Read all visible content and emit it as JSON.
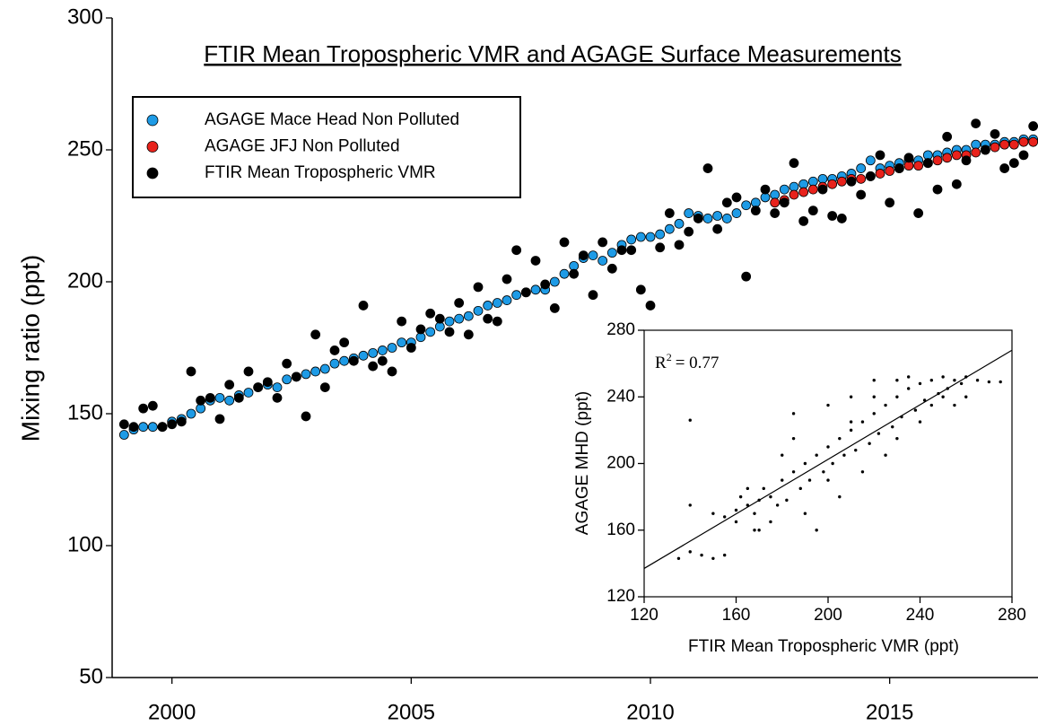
{
  "chart_data": [
    {
      "type": "scatter",
      "title": "FTIR Mean Tropospheric VMR and AGAGE Surface Measurements",
      "ylabel": "Mixing ratio (ppt)",
      "legend": "upper left",
      "xlim": [
        1998.75,
        2018.1
      ],
      "xticks": [
        2000,
        2005,
        2010,
        2015
      ],
      "ylim": [
        50,
        300
      ],
      "yticks": [
        50,
        100,
        150,
        200,
        250,
        300
      ],
      "series": [
        {
          "name": "AGAGE Mace Head Non Polluted",
          "color": "#1e9be6",
          "x": [
            1999.0,
            1999.2,
            1999.4,
            1999.6,
            1999.8,
            2000.0,
            2000.2,
            2000.4,
            2000.6,
            2000.8,
            2001.0,
            2001.2,
            2001.4,
            2001.6,
            2001.8,
            2002.0,
            2002.2,
            2002.4,
            2002.6,
            2002.8,
            2003.0,
            2003.2,
            2003.4,
            2003.6,
            2003.8,
            2004.0,
            2004.2,
            2004.4,
            2004.6,
            2004.8,
            2005.0,
            2005.2,
            2005.4,
            2005.6,
            2005.8,
            2006.0,
            2006.2,
            2006.4,
            2006.6,
            2006.8,
            2007.0,
            2007.2,
            2007.4,
            2007.6,
            2007.8,
            2008.0,
            2008.2,
            2008.4,
            2008.6,
            2008.8,
            2009.0,
            2009.2,
            2009.4,
            2009.6,
            2009.8,
            2010.0,
            2010.2,
            2010.4,
            2010.6,
            2010.8,
            2011.0,
            2011.2,
            2011.4,
            2011.6,
            2011.8,
            2012.0,
            2012.2,
            2012.4,
            2012.6,
            2012.8,
            2013.0,
            2013.2,
            2013.4,
            2013.6,
            2013.8,
            2014.0,
            2014.2,
            2014.4,
            2014.6,
            2014.8,
            2015.0,
            2015.2,
            2015.4,
            2015.6,
            2015.8,
            2016.0,
            2016.2,
            2016.4,
            2016.6,
            2016.8,
            2017.0,
            2017.2,
            2017.4,
            2017.6,
            2017.8,
            2018.0
          ],
          "values": [
            142,
            144,
            145,
            145,
            145,
            147,
            148,
            150,
            152,
            155,
            156,
            155,
            157,
            158,
            160,
            161,
            160,
            163,
            164,
            165,
            166,
            167,
            169,
            170,
            171,
            172,
            173,
            174,
            175,
            177,
            177,
            179,
            181,
            183,
            185,
            186,
            187,
            189,
            191,
            192,
            193,
            195,
            196,
            197,
            197,
            200,
            203,
            206,
            209,
            210,
            208,
            211,
            214,
            216,
            217,
            217,
            218,
            220,
            222,
            226,
            225,
            224,
            225,
            224,
            226,
            229,
            230,
            232,
            233,
            235,
            236,
            237,
            238,
            239,
            239,
            240,
            241,
            243,
            246,
            243,
            244,
            245,
            246,
            246,
            248,
            248,
            249,
            250,
            250,
            252,
            252,
            252,
            253,
            253,
            254,
            254
          ]
        },
        {
          "name": "AGAGE JFJ Non Polluted",
          "color": "#e8221c",
          "x": [
            2012.6,
            2012.8,
            2013.0,
            2013.2,
            2013.4,
            2013.6,
            2013.8,
            2014.0,
            2014.2,
            2014.4,
            2014.6,
            2014.8,
            2015.0,
            2015.2,
            2015.4,
            2015.6,
            2015.8,
            2016.0,
            2016.2,
            2016.4,
            2016.6,
            2016.8,
            2017.0,
            2017.2,
            2017.4,
            2017.6,
            2017.8,
            2018.0
          ],
          "values": [
            230,
            231,
            233,
            234,
            235,
            236,
            237,
            238,
            239,
            239,
            240,
            241,
            242,
            243,
            244,
            244,
            245,
            246,
            247,
            248,
            248,
            249,
            250,
            251,
            252,
            252,
            253,
            253
          ]
        },
        {
          "name": "FTIR Mean Tropospheric VMR",
          "color": "#000000",
          "x": [
            1999.0,
            1999.2,
            1999.4,
            1999.6,
            1999.8,
            2000.0,
            2000.2,
            2000.4,
            2000.6,
            2000.8,
            2001.0,
            2001.2,
            2001.4,
            2001.6,
            2001.8,
            2002.0,
            2002.2,
            2002.4,
            2002.6,
            2002.8,
            2003.0,
            2003.2,
            2003.4,
            2003.6,
            2003.8,
            2004.0,
            2004.2,
            2004.4,
            2004.6,
            2004.8,
            2005.0,
            2005.2,
            2005.4,
            2005.6,
            2005.8,
            2006.0,
            2006.2,
            2006.4,
            2006.6,
            2006.8,
            2007.0,
            2007.2,
            2007.4,
            2007.6,
            2007.8,
            2008.0,
            2008.2,
            2008.4,
            2008.6,
            2008.8,
            2009.0,
            2009.2,
            2009.4,
            2009.6,
            2009.8,
            2010.0,
            2010.2,
            2010.4,
            2010.6,
            2010.8,
            2011.0,
            2011.2,
            2011.4,
            2011.6,
            2011.8,
            2012.0,
            2012.2,
            2012.4,
            2012.6,
            2012.8,
            2013.0,
            2013.2,
            2013.4,
            2013.6,
            2013.8,
            2014.0,
            2014.2,
            2014.4,
            2014.6,
            2014.8,
            2015.0,
            2015.2,
            2015.4,
            2015.6,
            2015.8,
            2016.0,
            2016.2,
            2016.4,
            2016.6,
            2016.8,
            2017.0,
            2017.2,
            2017.4,
            2017.6,
            2017.8,
            2018.0
          ],
          "values": [
            146,
            145,
            152,
            153,
            145,
            146,
            147,
            166,
            155,
            156,
            148,
            161,
            156,
            166,
            160,
            162,
            156,
            169,
            164,
            149,
            180,
            160,
            174,
            177,
            170,
            191,
            168,
            170,
            166,
            185,
            175,
            182,
            188,
            186,
            181,
            192,
            180,
            198,
            186,
            185,
            201,
            212,
            196,
            208,
            199,
            190,
            215,
            203,
            210,
            195,
            215,
            205,
            212,
            212,
            197,
            191,
            213,
            226,
            214,
            219,
            224,
            243,
            220,
            230,
            232,
            202,
            227,
            235,
            226,
            230,
            245,
            223,
            227,
            235,
            225,
            224,
            238,
            233,
            240,
            248,
            230,
            243,
            247,
            226,
            245,
            235,
            255,
            237,
            246,
            260,
            250,
            256,
            243,
            245,
            248,
            259
          ]
        }
      ]
    },
    {
      "type": "scatter",
      "xlabel": "FTIR Mean Tropospheric VMR (ppt)",
      "ylabel": "AGAGE MHD (ppt)",
      "annotation": {
        "symbol": "R",
        "exponent": "2",
        "text": "= 0.77"
      },
      "xlim": [
        120,
        280
      ],
      "xticks": [
        120,
        160,
        200,
        240,
        280
      ],
      "ylim": [
        120,
        280
      ],
      "yticks": [
        120,
        160,
        200,
        240,
        280
      ],
      "fit": {
        "x": [
          120,
          280
        ],
        "y": [
          137,
          268
        ]
      },
      "series": [
        {
          "color": "#000000",
          "x": [
            135,
            140,
            145,
            150,
            155,
            140,
            150,
            155,
            160,
            162,
            165,
            168,
            170,
            172,
            175,
            178,
            180,
            182,
            185,
            188,
            190,
            192,
            195,
            198,
            200,
            202,
            205,
            207,
            210,
            212,
            215,
            218,
            220,
            222,
            225,
            228,
            230,
            232,
            235,
            238,
            240,
            242,
            245,
            248,
            250,
            252,
            255,
            258,
            260,
            265,
            270,
            275,
            140,
            180,
            185,
            195,
            205,
            210,
            215,
            220,
            225,
            230,
            235,
            240,
            245,
            250,
            175,
            168,
            165,
            190,
            200,
            210,
            220,
            230,
            260,
            255,
            170,
            160,
            185,
            200
          ],
          "values": [
            143,
            147,
            145,
            143,
            145,
            175,
            170,
            168,
            172,
            180,
            175,
            170,
            178,
            185,
            180,
            175,
            190,
            178,
            195,
            185,
            200,
            190,
            205,
            195,
            210,
            200,
            215,
            205,
            220,
            208,
            225,
            212,
            230,
            218,
            235,
            222,
            240,
            228,
            245,
            232,
            248,
            238,
            250,
            242,
            252,
            245,
            250,
            248,
            252,
            250,
            249,
            249,
            226,
            205,
            230,
            160,
            180,
            240,
            195,
            250,
            205,
            215,
            252,
            225,
            235,
            240,
            165,
            160,
            185,
            170,
            190,
            225,
            240,
            250,
            240,
            235,
            160,
            165,
            215,
            235
          ]
        }
      ]
    }
  ]
}
